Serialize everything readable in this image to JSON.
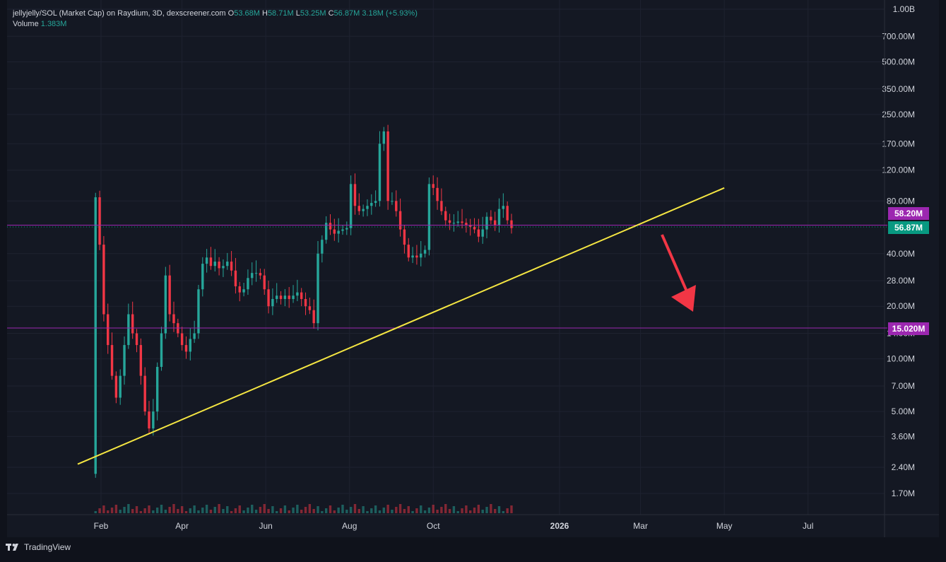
{
  "header": {
    "symbol": "jellyjelly/SOL (Market Cap) on Raydium, 3D, dexscreener.com",
    "o_key": "O",
    "o_val": "53.68M",
    "h_key": "H",
    "h_val": "58.71M",
    "l_key": "L",
    "l_val": "53.25M",
    "c_key": "C",
    "c_val": "56.87M",
    "change": "3.18M (+5.93%)",
    "volume_label": "Volume",
    "volume_val": "1.383M"
  },
  "price_tags": {
    "tag_upper": {
      "text": "58.20M",
      "color": "#9c27b0"
    },
    "tag_current": {
      "text": "56.87M",
      "color": "#089981"
    },
    "tag_support": {
      "text": "15.020M",
      "color": "#9c27b0"
    }
  },
  "footer": {
    "brand": "TradingView"
  },
  "colors": {
    "up": "#26a69a",
    "down": "#f23645",
    "trendline": "#f5e642",
    "level": "#9c27b0",
    "arrow": "#f23645"
  },
  "chart_data": {
    "type": "candlestick",
    "title": "jellyjelly/SOL (Market Cap) on Raydium, 3D, dexscreener.com",
    "y_scale": "log",
    "y_ticks": [
      {
        "value": 1000,
        "label": "1.00B"
      },
      {
        "value": 700,
        "label": "700.00M"
      },
      {
        "value": 500,
        "label": "500.00M"
      },
      {
        "value": 350,
        "label": "350.00M"
      },
      {
        "value": 250,
        "label": "250.00M"
      },
      {
        "value": 170,
        "label": "170.00M"
      },
      {
        "value": 120,
        "label": "120.00M"
      },
      {
        "value": 80,
        "label": "80.00M"
      },
      {
        "value": 40,
        "label": "40.00M"
      },
      {
        "value": 28,
        "label": "28.00M"
      },
      {
        "value": 20,
        "label": "20.00M"
      },
      {
        "value": 14,
        "label": "14.00M"
      },
      {
        "value": 10,
        "label": "10.00M"
      },
      {
        "value": 7,
        "label": "7.00M"
      },
      {
        "value": 5,
        "label": "5.00M"
      },
      {
        "value": 3.6,
        "label": "3.60M"
      },
      {
        "value": 2.4,
        "label": "2.40M"
      },
      {
        "value": 1.7,
        "label": "1.70M"
      }
    ],
    "x_ticks": [
      {
        "date": "2025-02-01",
        "label": "Feb"
      },
      {
        "date": "2025-04-01",
        "label": "Apr"
      },
      {
        "date": "2025-06-01",
        "label": "Jun"
      },
      {
        "date": "2025-08-01",
        "label": "Aug"
      },
      {
        "date": "2025-10-01",
        "label": "Oct"
      },
      {
        "date": "2026-01-01",
        "label": "2026"
      },
      {
        "date": "2026-03-01",
        "label": "Mar"
      },
      {
        "date": "2026-05-01",
        "label": "May"
      },
      {
        "date": "2026-07-01",
        "label": "Jul"
      }
    ],
    "close_series_millions": [
      [
        84,
        45,
        18,
        12,
        8,
        6,
        8,
        12,
        18,
        14,
        12,
        8,
        5,
        4,
        5,
        9,
        14,
        30,
        18,
        16,
        14,
        12,
        11,
        13,
        14,
        25,
        35,
        38,
        34,
        36,
        33,
        34,
        36,
        32,
        26,
        24,
        25,
        29,
        31,
        31,
        30,
        25,
        20,
        22,
        23,
        22,
        23,
        22,
        23,
        24,
        22,
        20,
        19,
        16,
        40,
        48,
        60,
        55,
        52,
        54,
        55,
        56,
        100,
        75,
        70,
        72,
        75,
        78,
        80,
        170,
        200,
        80,
        80,
        70,
        55,
        45,
        38,
        39,
        38,
        40,
        42,
        100,
        95,
        80,
        70,
        62,
        60,
        60,
        61,
        60,
        58,
        57,
        55,
        50,
        55,
        65,
        62,
        58,
        72,
        75,
        62,
        56
      ]
    ],
    "levels": [
      {
        "label": "58.20M",
        "value": 58.2
      },
      {
        "label": "15.020M",
        "value": 15.02
      }
    ],
    "trendline": {
      "start": {
        "date": "2025-01-15",
        "value": 2.5
      },
      "end": {
        "date": "2026-05-01",
        "value": 95
      }
    },
    "last_close": 56.87
  }
}
